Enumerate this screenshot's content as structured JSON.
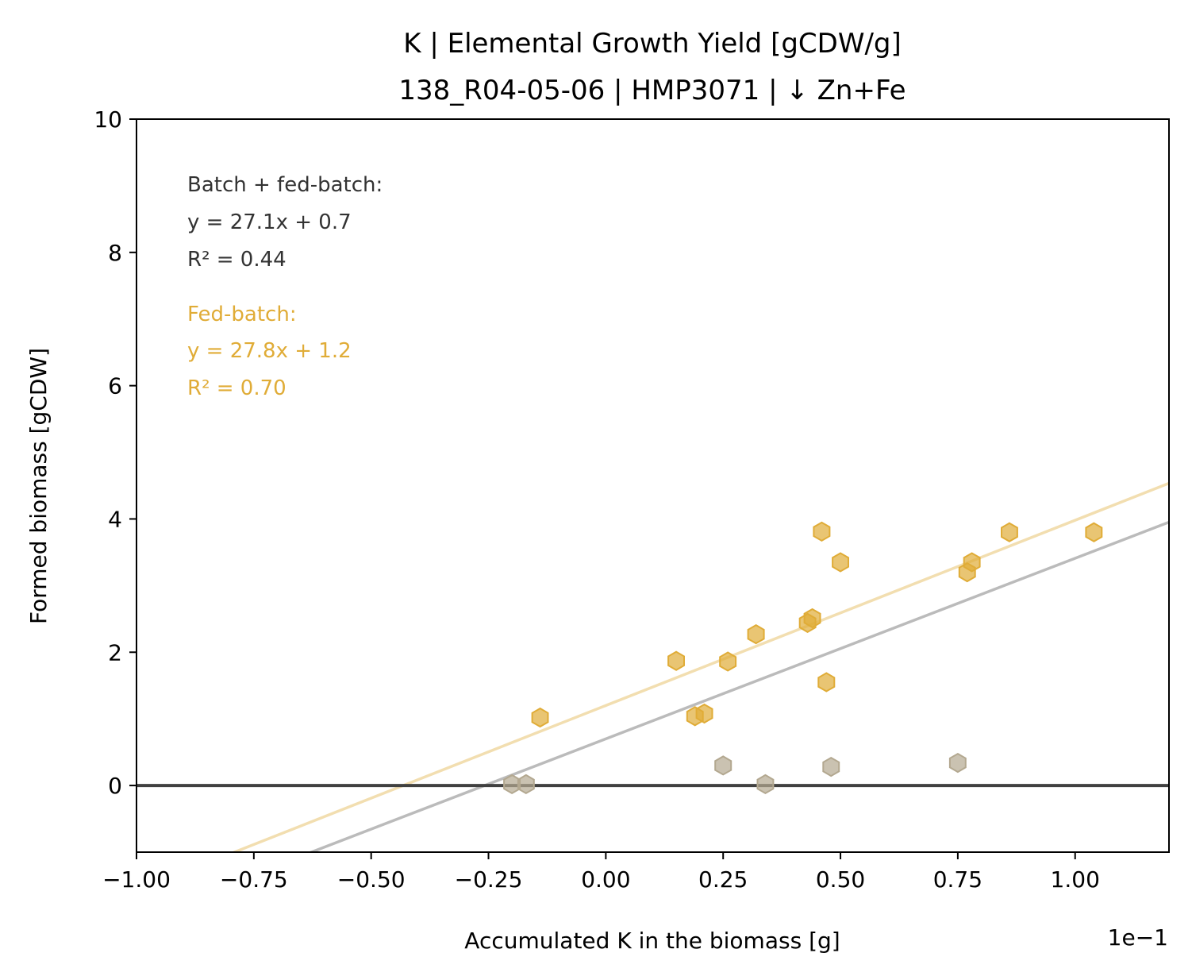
{
  "chart_data": {
    "type": "scatter",
    "title": "K  |  Elemental Growth Yield [gCDW/g]",
    "subtitle": "138_R04-05-06  |  HMP3071  |  ↓ Zn+Fe",
    "xlabel": "Accumulated K in the biomass [g]",
    "ylabel": "Formed biomass [gCDW]",
    "x_offset_text": "1e−1",
    "xlim": [
      -1.0,
      1.2
    ],
    "ylim": [
      -1,
      10
    ],
    "xticks": [
      -1.0,
      -0.75,
      -0.5,
      -0.25,
      0.0,
      0.25,
      0.5,
      0.75,
      1.0
    ],
    "xtick_labels": [
      "−1.00",
      "−0.75",
      "−0.50",
      "−0.25",
      "0.00",
      "0.25",
      "0.50",
      "0.75",
      "1.00"
    ],
    "yticks": [
      0,
      2,
      4,
      6,
      8,
      10
    ],
    "ytick_labels": [
      "0",
      "2",
      "4",
      "6",
      "8",
      "10"
    ],
    "grid": false,
    "zero_line": 0,
    "colors": {
      "batch_points": "#b3a890",
      "fed_batch_points": "#e0ac37",
      "overall_fit": "#bbbbbb",
      "fed_batch_fit": "#f2deb0",
      "zero_line": "#404040",
      "overall_text": "#333333",
      "fed_batch_text": "#e0ac37"
    },
    "series": [
      {
        "marker": "hexagon",
        "color": "#b3a890",
        "points": [
          [
            -0.2,
            0.02
          ],
          [
            -0.17,
            0.02
          ],
          [
            0.25,
            0.3
          ],
          [
            0.34,
            0.02
          ],
          [
            0.48,
            0.28
          ],
          [
            0.75,
            0.34
          ]
        ]
      },
      {
        "marker": "hexagon",
        "color": "#e0ac37",
        "points": [
          [
            -0.14,
            1.02
          ],
          [
            0.15,
            1.87
          ],
          [
            0.19,
            1.04
          ],
          [
            0.21,
            1.08
          ],
          [
            0.26,
            1.86
          ],
          [
            0.32,
            2.27
          ],
          [
            0.43,
            2.44
          ],
          [
            0.44,
            2.51
          ],
          [
            0.46,
            3.81
          ],
          [
            0.47,
            1.55
          ],
          [
            0.5,
            3.35
          ],
          [
            0.77,
            3.2
          ],
          [
            0.78,
            3.35
          ],
          [
            0.86,
            3.8
          ],
          [
            1.04,
            3.8
          ]
        ]
      }
    ],
    "fits": [
      {
        "slope": 27.1,
        "intercept": 0.7,
        "color": "#bbbbbb"
      },
      {
        "slope": 27.8,
        "intercept": 1.2,
        "color": "#f2deb0"
      }
    ],
    "annotations": {
      "overall": [
        "Batch + fed-batch:",
        "y = 27.1x + 0.7",
        "R² = 0.44"
      ],
      "fed_batch": [
        "Fed-batch:",
        "y = 27.8x + 1.2",
        "R² = 0.70"
      ]
    }
  }
}
